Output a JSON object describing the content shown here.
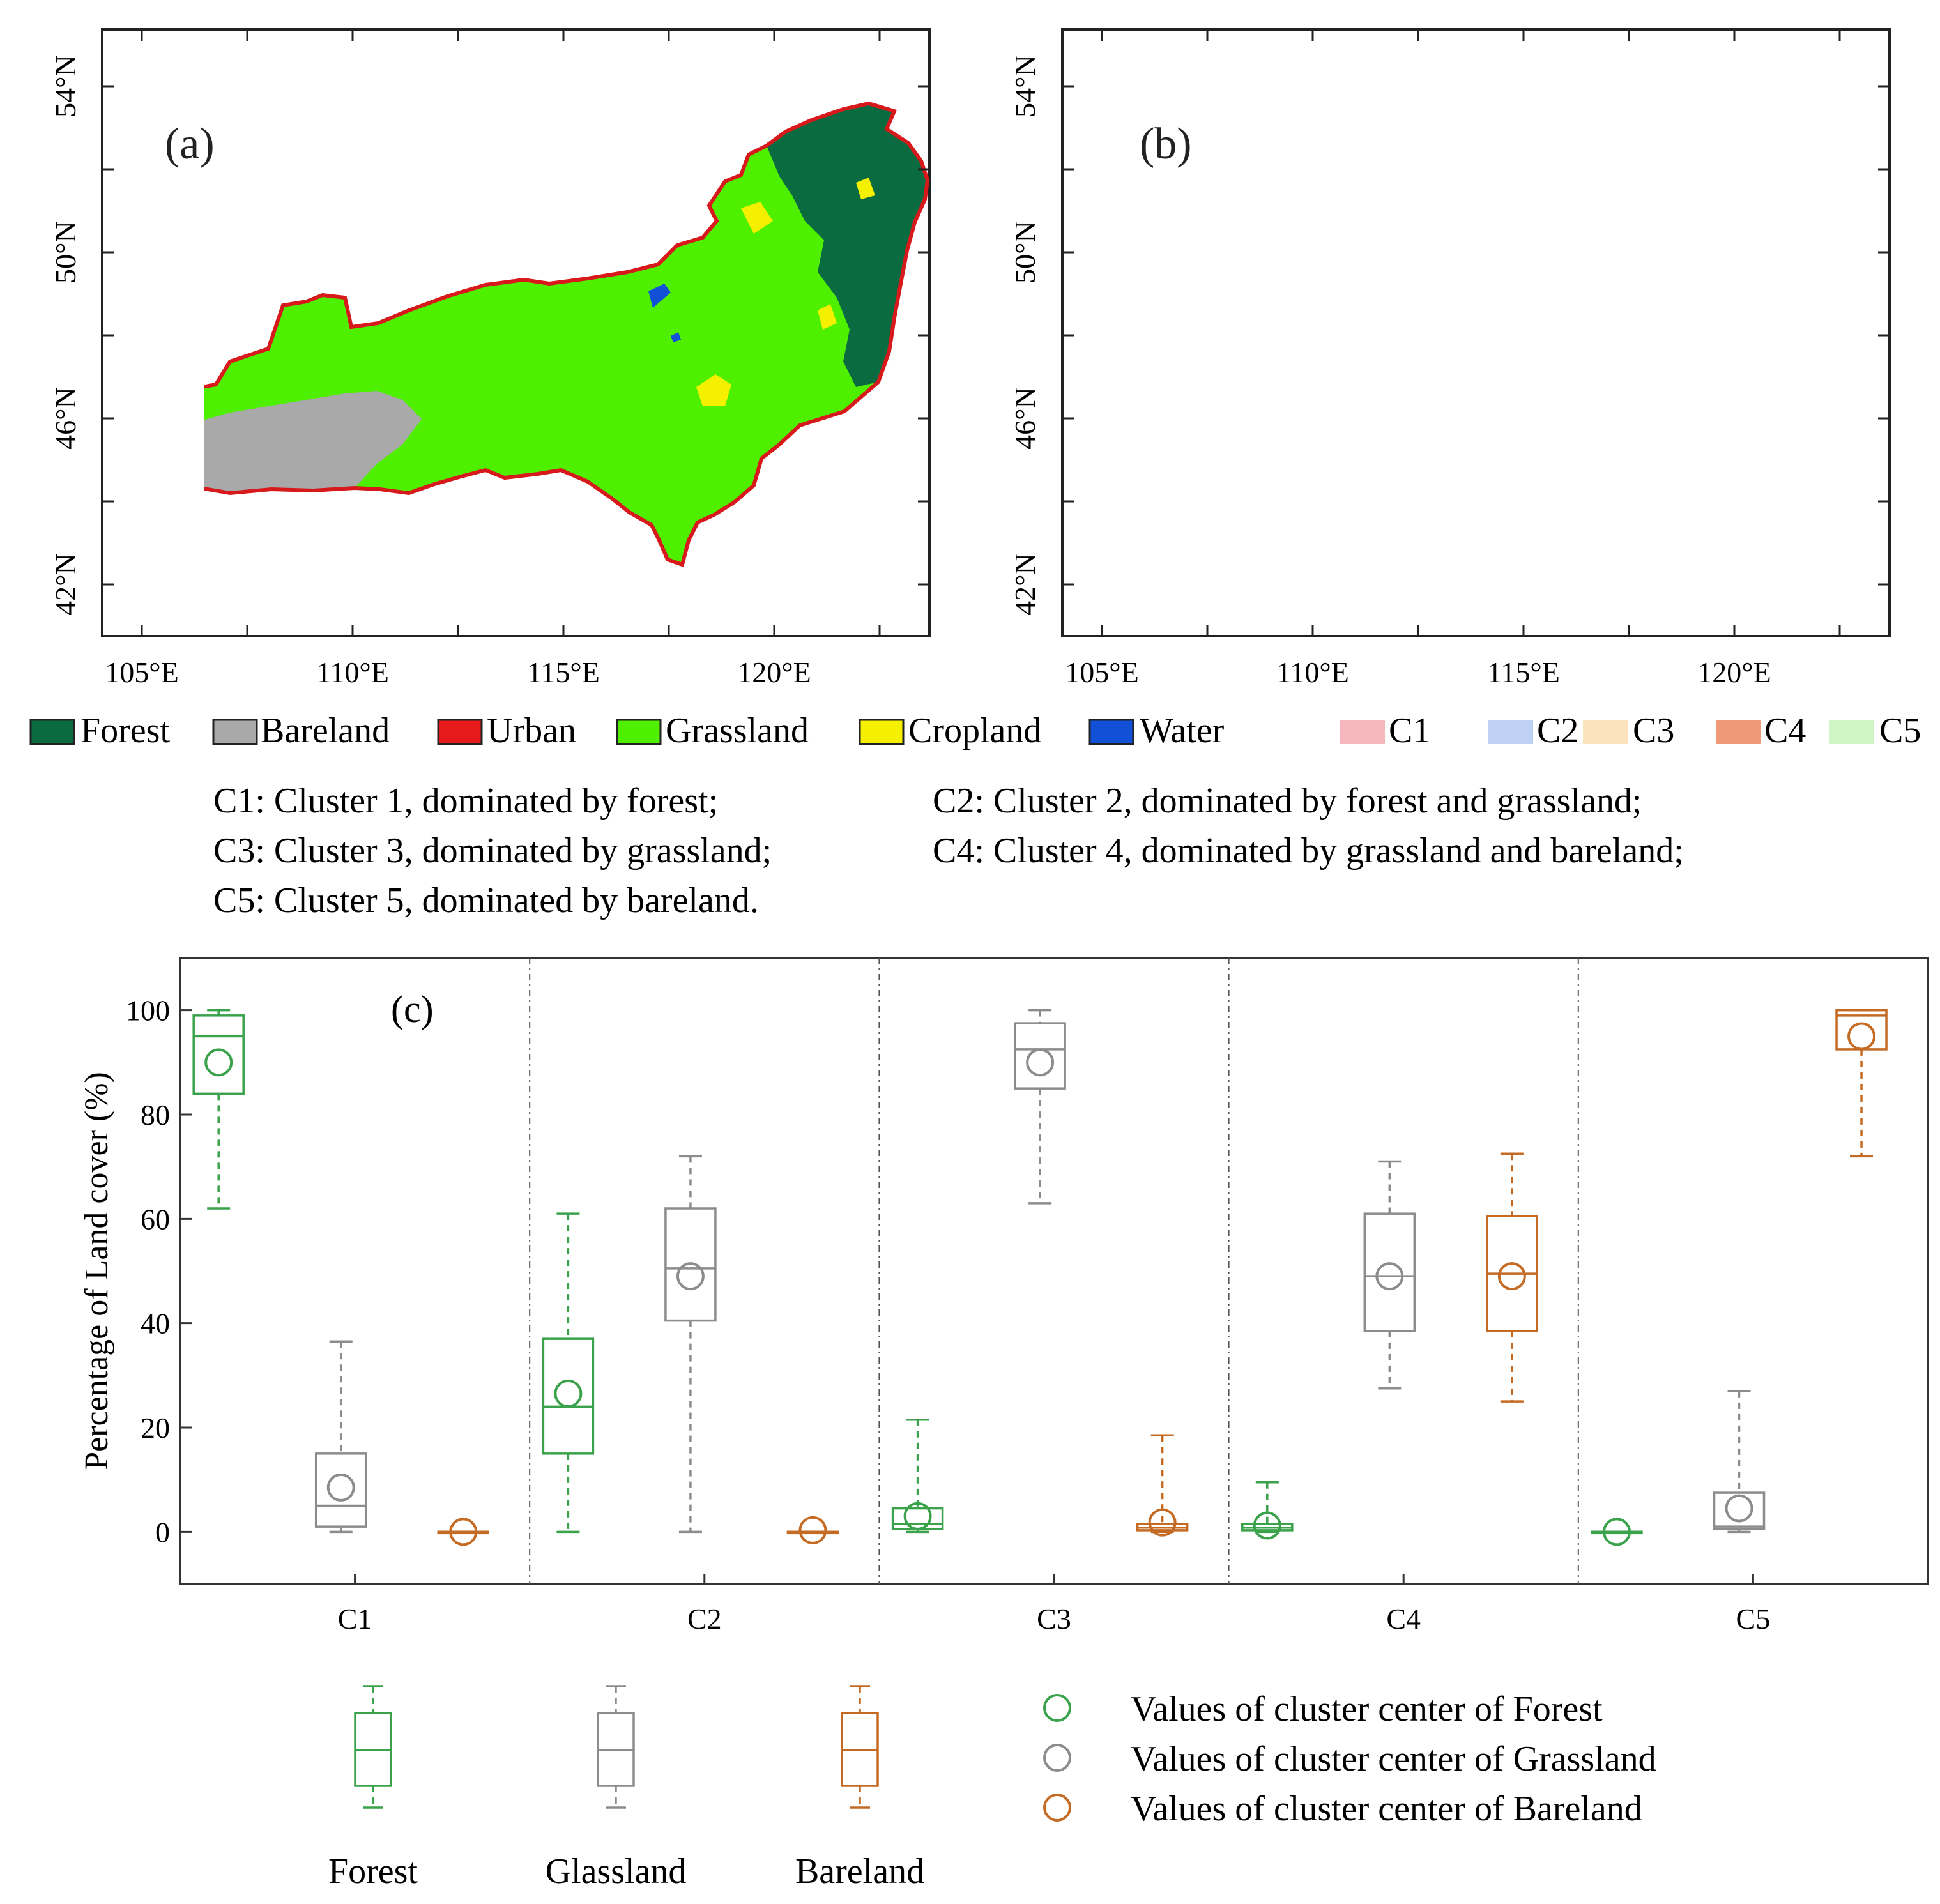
{
  "colors": {
    "forest": "#0b6b40",
    "bareland": "#a9a9a9",
    "urban": "#e8191a",
    "grassland": "#4ef000",
    "cropland": "#f4f000",
    "water": "#1250d8",
    "c1": "#f7b8bd",
    "c2": "#bfd0f5",
    "c3": "#fbe3bf",
    "c4": "#ee9a78",
    "c5": "#cff5c4",
    "border": "#d7191c",
    "box_forest": "#3aa24a",
    "box_grassland": "#8c8c8c",
    "box_bareland": "#c46a22"
  },
  "maps": {
    "a": {
      "label": "(a)",
      "lat_ticks": [
        "54°N",
        "50°N",
        "46°N",
        "42°N"
      ],
      "lon_ticks": [
        "105°E",
        "110°E",
        "115°E",
        "120°E"
      ]
    },
    "b": {
      "label": "(b)",
      "lat_ticks": [
        "54°N",
        "50°N",
        "46°N",
        "42°N"
      ],
      "lon_ticks": [
        "105°E",
        "110°E",
        "115°E",
        "120°E"
      ]
    }
  },
  "legend_landcover": [
    {
      "label": "Forest",
      "color_key": "forest"
    },
    {
      "label": "Bareland",
      "color_key": "bareland"
    },
    {
      "label": "Urban",
      "color_key": "urban"
    },
    {
      "label": "Grassland",
      "color_key": "grassland"
    },
    {
      "label": "Cropland",
      "color_key": "cropland"
    },
    {
      "label": "Water",
      "color_key": "water"
    }
  ],
  "legend_clusters": [
    {
      "label": "C1",
      "color_key": "c1"
    },
    {
      "label": "C2",
      "color_key": "c2"
    },
    {
      "label": "C3",
      "color_key": "c3"
    },
    {
      "label": "C4",
      "color_key": "c4"
    },
    {
      "label": "C5",
      "color_key": "c5"
    }
  ],
  "descriptions": [
    "C1: Cluster 1, dominated by forest;",
    "C2: Cluster 2, dominated by forest and grassland;",
    "C3: Cluster 3, dominated by grassland;",
    "C4: Cluster 4, dominated by grassland and bareland;",
    "C5: Cluster 5, dominated by bareland."
  ],
  "chart_data": {
    "type": "boxplot",
    "panel_label": "(c)",
    "ylabel": "Percentage of Land cover (%)",
    "ylim": [
      -10,
      110
    ],
    "yticks": [
      0,
      20,
      40,
      60,
      80,
      100
    ],
    "categories": [
      "C1",
      "C2",
      "C3",
      "C4",
      "C5"
    ],
    "series": [
      {
        "name": "Forest",
        "color_key": "box_forest",
        "boxes": [
          {
            "min": 62,
            "q1": 84,
            "median": 95,
            "q3": 99,
            "max": 100,
            "center": 90
          },
          {
            "min": 0,
            "q1": 15,
            "median": 24,
            "q3": 37,
            "max": 61,
            "center": 26.5
          },
          {
            "min": 0,
            "q1": 0.5,
            "median": 1.5,
            "q3": 4.5,
            "max": 21.5,
            "center": 3
          },
          {
            "min": 0,
            "q1": 0.3,
            "median": 0.8,
            "q3": 1.5,
            "max": 9.5,
            "center": 1.2
          },
          {
            "min": 0,
            "q1": 0,
            "median": 0,
            "q3": 0,
            "max": 0,
            "center": 0
          }
        ]
      },
      {
        "name": "Grassland",
        "color_key": "box_grassland",
        "boxes": [
          {
            "min": 0,
            "q1": 1,
            "median": 5,
            "q3": 15,
            "max": 36.5,
            "center": 8.5
          },
          {
            "min": 0,
            "q1": 40.5,
            "median": 50.5,
            "q3": 62,
            "max": 72,
            "center": 49
          },
          {
            "min": 63,
            "q1": 85,
            "median": 92.5,
            "q3": 97.5,
            "max": 100,
            "center": 90
          },
          {
            "min": 27.5,
            "q1": 38.5,
            "median": 49,
            "q3": 61,
            "max": 71,
            "center": 49
          },
          {
            "min": 0,
            "q1": 0.5,
            "median": 1,
            "q3": 7.5,
            "max": 27,
            "center": 4.5
          }
        ]
      },
      {
        "name": "Bareland",
        "color_key": "box_bareland",
        "boxes": [
          {
            "min": 0,
            "q1": 0,
            "median": 0,
            "q3": 0,
            "max": 0,
            "center": 0
          },
          {
            "min": 0,
            "q1": 0,
            "median": 0,
            "q3": 0,
            "max": 0,
            "center": 0.3
          },
          {
            "min": 0,
            "q1": 0.3,
            "median": 0.8,
            "q3": 1.5,
            "max": 18.5,
            "center": 1.8
          },
          {
            "min": 25,
            "q1": 38.5,
            "median": 49.5,
            "q3": 60.5,
            "max": 72.5,
            "center": 49
          },
          {
            "min": 72,
            "q1": 92.5,
            "median": 99,
            "q3": 100,
            "max": 100,
            "center": 95
          }
        ]
      }
    ]
  },
  "box_legend": {
    "items": [
      "Forest",
      "Glassland",
      "Bareland"
    ],
    "center_labels": [
      "Values of cluster center of Forest",
      "Values of cluster center of Grassland",
      "Values of cluster center of Bareland"
    ]
  }
}
